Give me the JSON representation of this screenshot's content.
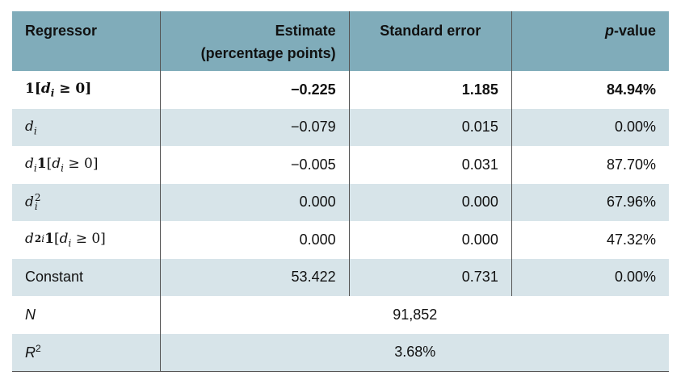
{
  "table": {
    "header": [
      "Regressor",
      [
        "Estimate",
        "(percentage points)"
      ],
      "Standard error",
      [
        "p",
        "-value"
      ]
    ],
    "rows": [
      [
        [
          "1",
          "[",
          "d",
          "i",
          " ≥ 0]"
        ],
        "−0.225",
        "1.185",
        "84.94%"
      ],
      [
        [
          "d",
          "i"
        ],
        "−0.079",
        "0.015",
        "0.00%"
      ],
      [
        [
          "d",
          "i",
          "1",
          "[",
          "d",
          "i",
          " ≥ 0]"
        ],
        "−0.005",
        "0.031",
        "87.70%"
      ],
      [
        [
          "d",
          "i",
          "2"
        ],
        "0.000",
        "0.000",
        "67.96%"
      ],
      [
        [
          "d",
          "i",
          "2",
          "1",
          "[",
          "d",
          "i",
          " ≥ 0]"
        ],
        "0.000",
        "0.000",
        "47.32%"
      ],
      [
        "Constant",
        "53.422",
        "0.731",
        "0.00%"
      ],
      [
        [
          "N"
        ],
        "91,852"
      ],
      [
        [
          "R",
          "2"
        ],
        "3.68%"
      ]
    ]
  }
}
